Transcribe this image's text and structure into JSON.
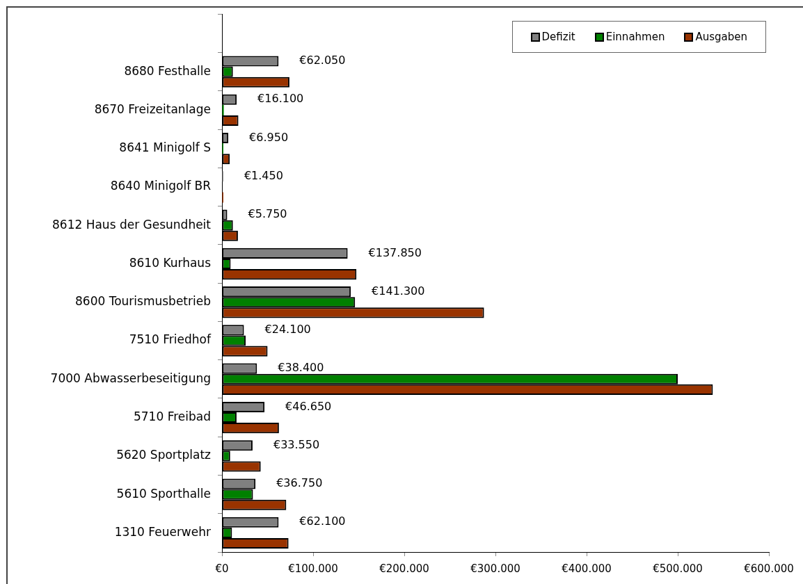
{
  "chart_data": {
    "type": "bar",
    "orientation": "horizontal",
    "legend": "top right",
    "grid": false,
    "categories": [
      null,
      "8680 Festhalle",
      "8670 Freizeitanlage",
      "8641 Minigolf S",
      "8640 Minigolf BR",
      "8612 Haus der Gesundheit",
      "8610 Kurhaus",
      "8600 Tourismusbetrieb",
      "7510 Friedhof",
      "7000 Abwasserbeseitigung",
      "5710 Freibad",
      "5620 Sportplatz",
      "5610 Sporthalle",
      "1310 Feuerwehr"
    ],
    "series": [
      {
        "name": "Defizit",
        "color": "#808080",
        "values": [
          null,
          62050,
          16100,
          6950,
          1450,
          5750,
          137850,
          141300,
          24100,
          38400,
          46650,
          33550,
          36750,
          62100
        ],
        "value_labels": [
          null,
          "€62.050",
          "€16.100",
          "€6.950",
          "€1.450",
          "€5.750",
          "€137.850",
          "€141.300",
          "€24.100",
          "€38.400",
          "€46.650",
          "€33.550",
          "€36.750",
          "€62.100"
        ]
      },
      {
        "name": "Einnahmen",
        "color": "#008000",
        "values": [
          null,
          12000,
          2000,
          1500,
          0,
          12000,
          9500,
          146000,
          26000,
          500000,
          16000,
          9000,
          34000,
          11000
        ]
      },
      {
        "name": "Ausgaben",
        "color": "#993300",
        "values": [
          null,
          74000,
          18000,
          8500,
          1500,
          17500,
          147500,
          287500,
          50000,
          538500,
          62500,
          42500,
          70500,
          73000
        ]
      }
    ],
    "xlim": [
      0,
      600000
    ],
    "xticks": [
      {
        "value": 0,
        "label": "€0"
      },
      {
        "value": 100000,
        "label": "€100.000"
      },
      {
        "value": 200000,
        "label": "€200.000"
      },
      {
        "value": 300000,
        "label": "€300.000"
      },
      {
        "value": 400000,
        "label": "€400.000"
      },
      {
        "value": 500000,
        "label": "€500.000"
      },
      {
        "value": 600000,
        "label": "€600.000"
      }
    ]
  }
}
